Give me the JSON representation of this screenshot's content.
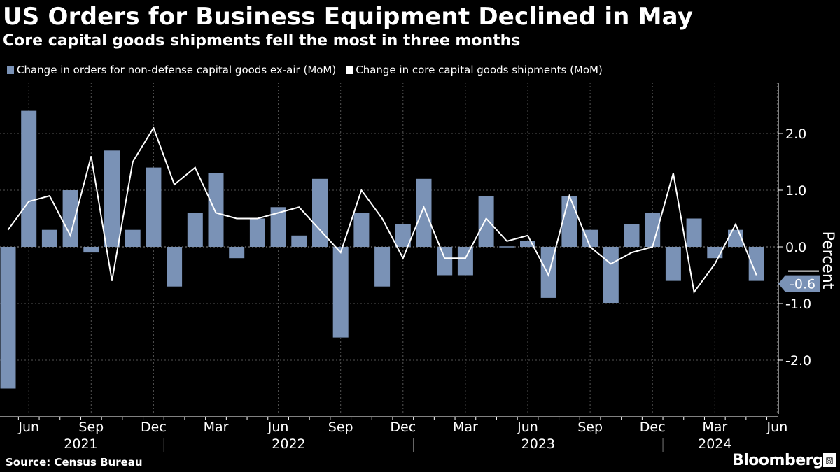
{
  "header": {
    "title": "US Orders for Business Equipment Declined in May",
    "subtitle": "Core capital goods shipments fell the most in three months"
  },
  "legend": {
    "items": [
      {
        "label": "Change in orders for non-defense capital goods ex-air (MoM)",
        "color": "#7a92b6"
      },
      {
        "label": "Change in core capital goods shipments (MoM)",
        "color": "#ffffff"
      }
    ]
  },
  "footer": {
    "source": "Source: Census Bureau",
    "brand": "Bloomberg"
  },
  "chart_data": {
    "type": "bar",
    "y_axis_title": "Percent",
    "ylim": [
      -2.6,
      2.6
    ],
    "yticks": [
      2.0,
      1.0,
      0.0,
      -1.0,
      -2.0
    ],
    "ytick_labels": [
      "2.0",
      "1.0",
      "0.0",
      "-1.0",
      "-2.0"
    ],
    "last_value_label": "-0.6",
    "grid": true,
    "legend_placement": "top-left",
    "x_ticks": [
      "Jun",
      "Sep",
      "Dec",
      "Mar",
      "Jun",
      "Sep",
      "Dec",
      "Mar",
      "Jun",
      "Sep",
      "Dec",
      "Mar",
      "Jun"
    ],
    "x_tick_months": [
      "2021-06",
      "2021-09",
      "2021-12",
      "2022-03",
      "2022-06",
      "2022-09",
      "2022-12",
      "2023-03",
      "2023-06",
      "2023-09",
      "2023-12",
      "2024-03",
      "2024-06"
    ],
    "year_labels": [
      "2021",
      "2022",
      "2023",
      "2024"
    ],
    "categories": [
      "2021-05",
      "2021-06",
      "2021-07",
      "2021-08",
      "2021-09",
      "2021-10",
      "2021-11",
      "2021-12",
      "2022-01",
      "2022-02",
      "2022-03",
      "2022-04",
      "2022-05",
      "2022-06",
      "2022-07",
      "2022-08",
      "2022-09",
      "2022-10",
      "2022-11",
      "2022-12",
      "2023-01",
      "2023-02",
      "2023-03",
      "2023-04",
      "2023-05",
      "2023-06",
      "2023-07",
      "2023-08",
      "2023-09",
      "2023-10",
      "2023-11",
      "2023-12",
      "2024-01",
      "2024-02",
      "2024-03",
      "2024-04",
      "2024-05"
    ],
    "series": [
      {
        "name": "Change in orders for non-defense capital goods ex-air (MoM)",
        "type": "bar",
        "color": "#7a92b6",
        "values": [
          -2.5,
          2.4,
          0.3,
          1.0,
          -0.1,
          1.7,
          0.3,
          1.4,
          -0.7,
          0.6,
          1.3,
          -0.2,
          0.5,
          0.7,
          0.2,
          1.2,
          -1.6,
          0.6,
          -0.7,
          0.4,
          1.2,
          -0.5,
          -0.5,
          0.9,
          0.0,
          0.1,
          -0.9,
          0.9,
          0.3,
          -1.0,
          0.4,
          0.6,
          -0.6,
          0.5,
          -0.2,
          0.3,
          -0.6
        ]
      },
      {
        "name": "Change in core capital goods shipments (MoM)",
        "type": "line",
        "color": "#ffffff",
        "values": [
          0.3,
          0.8,
          0.9,
          0.2,
          1.6,
          -0.6,
          1.5,
          2.1,
          1.1,
          1.4,
          0.6,
          0.5,
          0.5,
          0.6,
          0.7,
          0.3,
          -0.1,
          1.0,
          0.5,
          -0.2,
          0.7,
          -0.2,
          -0.2,
          0.5,
          0.1,
          0.2,
          -0.5,
          0.9,
          0.0,
          -0.3,
          -0.1,
          0.0,
          1.3,
          -0.8,
          -0.3,
          0.4,
          -0.5
        ]
      }
    ]
  }
}
